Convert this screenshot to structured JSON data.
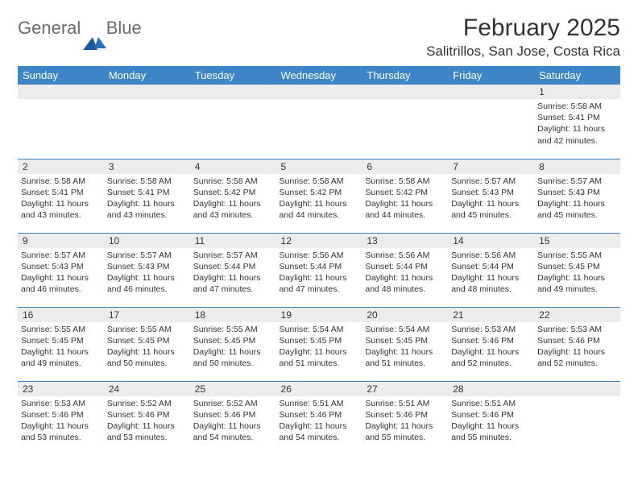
{
  "logo": {
    "text_gray": "General",
    "text_blue": "Blue"
  },
  "title": "February 2025",
  "location": "Salitrillos, San Jose, Costa Rica",
  "header_bg": "#3d85c6",
  "header_fg": "#ffffff",
  "border_color": "#3d85c6",
  "daynum_bg": "#ececec",
  "page_bg": "#ffffff",
  "text_color": "#333333",
  "title_fontsize": 30,
  "location_fontsize": 17,
  "header_fontsize": 13,
  "daynum_fontsize": 12,
  "body_fontsize": 10.5,
  "days": [
    "Sunday",
    "Monday",
    "Tuesday",
    "Wednesday",
    "Thursday",
    "Friday",
    "Saturday"
  ],
  "weeks": [
    [
      null,
      null,
      null,
      null,
      null,
      null,
      {
        "n": "1",
        "sr": "5:58 AM",
        "ss": "5:41 PM",
        "dl": "11 hours and 42 minutes."
      }
    ],
    [
      {
        "n": "2",
        "sr": "5:58 AM",
        "ss": "5:41 PM",
        "dl": "11 hours and 43 minutes."
      },
      {
        "n": "3",
        "sr": "5:58 AM",
        "ss": "5:41 PM",
        "dl": "11 hours and 43 minutes."
      },
      {
        "n": "4",
        "sr": "5:58 AM",
        "ss": "5:42 PM",
        "dl": "11 hours and 43 minutes."
      },
      {
        "n": "5",
        "sr": "5:58 AM",
        "ss": "5:42 PM",
        "dl": "11 hours and 44 minutes."
      },
      {
        "n": "6",
        "sr": "5:58 AM",
        "ss": "5:42 PM",
        "dl": "11 hours and 44 minutes."
      },
      {
        "n": "7",
        "sr": "5:57 AM",
        "ss": "5:43 PM",
        "dl": "11 hours and 45 minutes."
      },
      {
        "n": "8",
        "sr": "5:57 AM",
        "ss": "5:43 PM",
        "dl": "11 hours and 45 minutes."
      }
    ],
    [
      {
        "n": "9",
        "sr": "5:57 AM",
        "ss": "5:43 PM",
        "dl": "11 hours and 46 minutes."
      },
      {
        "n": "10",
        "sr": "5:57 AM",
        "ss": "5:43 PM",
        "dl": "11 hours and 46 minutes."
      },
      {
        "n": "11",
        "sr": "5:57 AM",
        "ss": "5:44 PM",
        "dl": "11 hours and 47 minutes."
      },
      {
        "n": "12",
        "sr": "5:56 AM",
        "ss": "5:44 PM",
        "dl": "11 hours and 47 minutes."
      },
      {
        "n": "13",
        "sr": "5:56 AM",
        "ss": "5:44 PM",
        "dl": "11 hours and 48 minutes."
      },
      {
        "n": "14",
        "sr": "5:56 AM",
        "ss": "5:44 PM",
        "dl": "11 hours and 48 minutes."
      },
      {
        "n": "15",
        "sr": "5:55 AM",
        "ss": "5:45 PM",
        "dl": "11 hours and 49 minutes."
      }
    ],
    [
      {
        "n": "16",
        "sr": "5:55 AM",
        "ss": "5:45 PM",
        "dl": "11 hours and 49 minutes."
      },
      {
        "n": "17",
        "sr": "5:55 AM",
        "ss": "5:45 PM",
        "dl": "11 hours and 50 minutes."
      },
      {
        "n": "18",
        "sr": "5:55 AM",
        "ss": "5:45 PM",
        "dl": "11 hours and 50 minutes."
      },
      {
        "n": "19",
        "sr": "5:54 AM",
        "ss": "5:45 PM",
        "dl": "11 hours and 51 minutes."
      },
      {
        "n": "20",
        "sr": "5:54 AM",
        "ss": "5:45 PM",
        "dl": "11 hours and 51 minutes."
      },
      {
        "n": "21",
        "sr": "5:53 AM",
        "ss": "5:46 PM",
        "dl": "11 hours and 52 minutes."
      },
      {
        "n": "22",
        "sr": "5:53 AM",
        "ss": "5:46 PM",
        "dl": "11 hours and 52 minutes."
      }
    ],
    [
      {
        "n": "23",
        "sr": "5:53 AM",
        "ss": "5:46 PM",
        "dl": "11 hours and 53 minutes."
      },
      {
        "n": "24",
        "sr": "5:52 AM",
        "ss": "5:46 PM",
        "dl": "11 hours and 53 minutes."
      },
      {
        "n": "25",
        "sr": "5:52 AM",
        "ss": "5:46 PM",
        "dl": "11 hours and 54 minutes."
      },
      {
        "n": "26",
        "sr": "5:51 AM",
        "ss": "5:46 PM",
        "dl": "11 hours and 54 minutes."
      },
      {
        "n": "27",
        "sr": "5:51 AM",
        "ss": "5:46 PM",
        "dl": "11 hours and 55 minutes."
      },
      {
        "n": "28",
        "sr": "5:51 AM",
        "ss": "5:46 PM",
        "dl": "11 hours and 55 minutes."
      },
      null
    ]
  ],
  "labels": {
    "sunrise": "Sunrise:",
    "sunset": "Sunset:",
    "daylight": "Daylight:"
  }
}
